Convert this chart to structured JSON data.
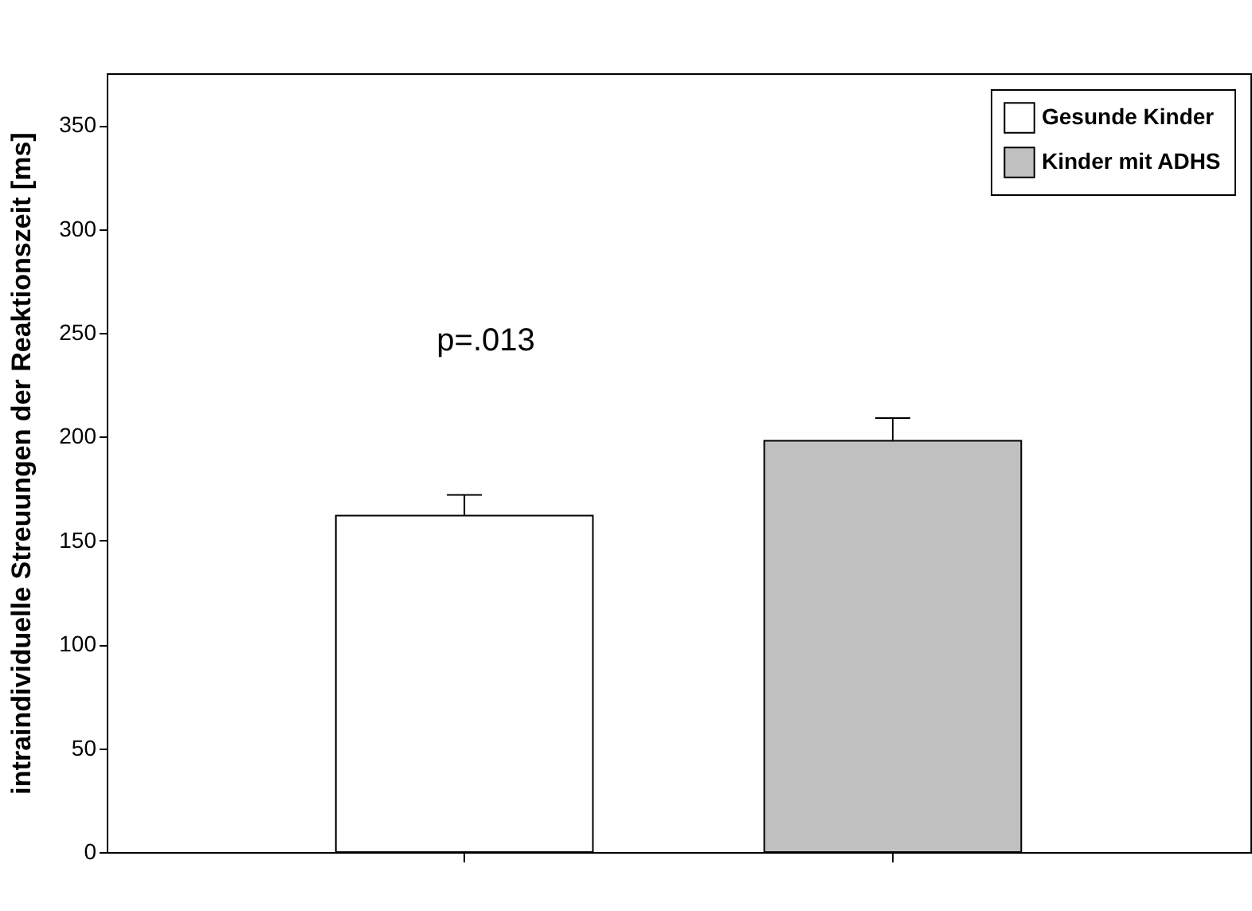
{
  "chart_data": {
    "type": "bar",
    "ylabel": "intraindividuelle Streuungen der Reaktionszeit [ms]",
    "categories": [
      null,
      null
    ],
    "series": [
      {
        "name": "Gesunde Kinder",
        "color": "#ffffff",
        "values": [
          162,
          0
        ],
        "errors": [
          10,
          null
        ]
      },
      {
        "name": "Kinder mit ADHS",
        "color": "#c0c0c0",
        "values": [
          0,
          198
        ],
        "errors": [
          null,
          11
        ]
      }
    ],
    "stacked": true,
    "ylim": [
      0,
      375
    ],
    "yticks": [
      0,
      50,
      100,
      150,
      200,
      250,
      300,
      350
    ],
    "grid": false,
    "legend": "top right",
    "tick_labels": "y",
    "annotations": [
      "p=.013"
    ]
  }
}
